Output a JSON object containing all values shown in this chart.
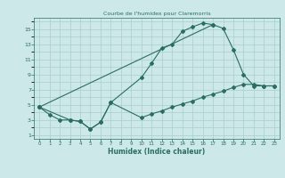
{
  "title": "Courbe de l'humidex pour Claremorris",
  "xlabel": "Humidex (Indice chaleur)",
  "bg_color": "#cce8e8",
  "grid_color": "#aacece",
  "line_color": "#2a6e60",
  "xlim": [
    -0.5,
    23.5
  ],
  "ylim": [
    0.5,
    16.5
  ],
  "xticks": [
    0,
    1,
    2,
    3,
    4,
    5,
    6,
    7,
    8,
    9,
    10,
    11,
    12,
    13,
    14,
    15,
    16,
    17,
    18,
    19,
    20,
    21,
    22,
    23
  ],
  "yticks": [
    1,
    3,
    5,
    7,
    9,
    11,
    13,
    15
  ],
  "curve1_x": [
    0,
    1,
    2,
    3,
    4,
    5,
    6,
    7,
    10,
    11,
    12,
    13,
    14,
    15,
    16,
    17
  ],
  "curve1_y": [
    4.7,
    3.7,
    3.0,
    3.0,
    2.8,
    1.8,
    2.7,
    5.3,
    8.6,
    10.5,
    12.5,
    13.0,
    14.7,
    15.3,
    15.8,
    15.6
  ],
  "curve2_x": [
    0,
    17,
    18,
    19,
    20,
    21,
    22,
    23
  ],
  "curve2_y": [
    4.7,
    15.6,
    15.1,
    12.3,
    9.0,
    7.5,
    7.5,
    7.5
  ],
  "curve3_x": [
    0,
    3,
    4,
    5,
    6,
    7,
    10,
    11,
    12,
    13,
    14,
    15,
    16,
    17,
    18,
    19,
    20,
    21,
    22,
    23
  ],
  "curve3_y": [
    4.7,
    3.0,
    2.8,
    1.8,
    2.7,
    5.3,
    3.3,
    3.8,
    4.2,
    4.7,
    5.1,
    5.5,
    6.0,
    6.4,
    6.8,
    7.3,
    7.7,
    7.7,
    7.5,
    7.5
  ]
}
